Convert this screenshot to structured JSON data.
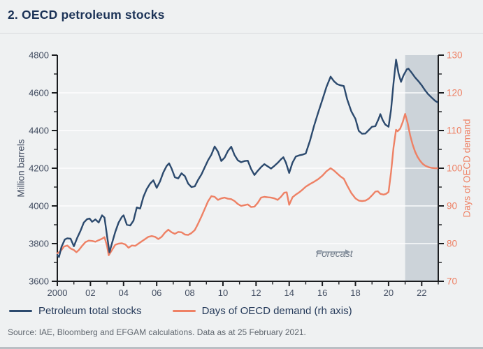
{
  "page": {
    "title": "2. OECD petroleum stocks"
  },
  "annotation": {
    "forecast_label": "Forecast"
  },
  "legend": {
    "items": [
      {
        "label": "Petroleum total stocks",
        "color": "#2c4a6e"
      },
      {
        "label": "Days of OECD demand (rh axis)",
        "color": "#ee8165"
      }
    ]
  },
  "source": {
    "text": "Source: IAE, Bloomberg and EFGAM calculations. Data as at 25 February 2021."
  },
  "chart_data": {
    "type": "line",
    "title": "2. OECD petroleum stocks",
    "grid": "horizontal white gridlines at left-axis major ticks",
    "legend_position": "bottom",
    "x_axis": {
      "range": [
        2000,
        2023
      ],
      "major_ticks": [
        2000,
        2002,
        2004,
        2006,
        2008,
        2010,
        2012,
        2014,
        2016,
        2018,
        2020,
        2022
      ],
      "tick_labels": [
        "2000",
        "02",
        "04",
        "06",
        "08",
        "10",
        "12",
        "14",
        "16",
        "18",
        "20",
        "22"
      ],
      "minor_tick_years": [
        2001,
        2003,
        2005,
        2007,
        2009,
        2011,
        2013,
        2015,
        2017,
        2019,
        2021,
        2023
      ],
      "label_color": "#424d61"
    },
    "y_left": {
      "label": "Million barrels",
      "range": [
        3600,
        4800
      ],
      "ticks": [
        3600,
        3800,
        4000,
        4200,
        4400,
        4600,
        4800
      ],
      "minor_step": 100,
      "label_color": "#424d61"
    },
    "y_right": {
      "label": "Days of OECD demand",
      "range": [
        70,
        130
      ],
      "ticks": [
        70,
        80,
        90,
        100,
        110,
        120,
        130
      ],
      "minor_step": 5,
      "label_color": "#ee8165"
    },
    "forecast_band": {
      "start": 2021,
      "end": 2023,
      "color": "#ccd3d9",
      "label": "Forecast"
    },
    "series": [
      {
        "name": "Petroleum total stocks",
        "axis": "left",
        "color": "#2c4a6e",
        "points": [
          [
            2000.0,
            3740
          ],
          [
            2000.1,
            3729
          ],
          [
            2000.25,
            3782
          ],
          [
            2000.45,
            3822
          ],
          [
            2000.6,
            3828
          ],
          [
            2000.8,
            3826
          ],
          [
            2001.0,
            3786
          ],
          [
            2001.2,
            3830
          ],
          [
            2001.4,
            3868
          ],
          [
            2001.6,
            3912
          ],
          [
            2001.8,
            3930
          ],
          [
            2001.95,
            3933
          ],
          [
            2002.1,
            3916
          ],
          [
            2002.3,
            3928
          ],
          [
            2002.5,
            3912
          ],
          [
            2002.7,
            3950
          ],
          [
            2002.85,
            3938
          ],
          [
            2003.0,
            3842
          ],
          [
            2003.15,
            3754
          ],
          [
            2003.3,
            3802
          ],
          [
            2003.5,
            3862
          ],
          [
            2003.7,
            3912
          ],
          [
            2003.9,
            3942
          ],
          [
            2004.0,
            3950
          ],
          [
            2004.2,
            3900
          ],
          [
            2004.4,
            3896
          ],
          [
            2004.6,
            3922
          ],
          [
            2004.8,
            3992
          ],
          [
            2005.0,
            3986
          ],
          [
            2005.2,
            4048
          ],
          [
            2005.4,
            4090
          ],
          [
            2005.6,
            4118
          ],
          [
            2005.8,
            4136
          ],
          [
            2006.0,
            4096
          ],
          [
            2006.2,
            4130
          ],
          [
            2006.4,
            4178
          ],
          [
            2006.6,
            4212
          ],
          [
            2006.75,
            4226
          ],
          [
            2006.9,
            4198
          ],
          [
            2007.1,
            4152
          ],
          [
            2007.3,
            4146
          ],
          [
            2007.5,
            4173
          ],
          [
            2007.7,
            4158
          ],
          [
            2007.9,
            4118
          ],
          [
            2008.1,
            4100
          ],
          [
            2008.3,
            4104
          ],
          [
            2008.5,
            4138
          ],
          [
            2008.7,
            4167
          ],
          [
            2008.9,
            4205
          ],
          [
            2009.1,
            4242
          ],
          [
            2009.3,
            4272
          ],
          [
            2009.5,
            4315
          ],
          [
            2009.7,
            4288
          ],
          [
            2009.9,
            4238
          ],
          [
            2010.1,
            4256
          ],
          [
            2010.3,
            4292
          ],
          [
            2010.5,
            4314
          ],
          [
            2010.7,
            4270
          ],
          [
            2010.9,
            4242
          ],
          [
            2011.1,
            4232
          ],
          [
            2011.3,
            4238
          ],
          [
            2011.5,
            4240
          ],
          [
            2011.7,
            4196
          ],
          [
            2011.9,
            4164
          ],
          [
            2012.1,
            4186
          ],
          [
            2012.3,
            4206
          ],
          [
            2012.5,
            4222
          ],
          [
            2012.7,
            4210
          ],
          [
            2012.9,
            4198
          ],
          [
            2013.1,
            4212
          ],
          [
            2013.3,
            4228
          ],
          [
            2013.5,
            4247
          ],
          [
            2013.65,
            4258
          ],
          [
            2013.8,
            4230
          ],
          [
            2014.0,
            4175
          ],
          [
            2014.2,
            4230
          ],
          [
            2014.4,
            4262
          ],
          [
            2014.6,
            4268
          ],
          [
            2014.8,
            4272
          ],
          [
            2015.0,
            4278
          ],
          [
            2015.25,
            4345
          ],
          [
            2015.5,
            4425
          ],
          [
            2015.75,
            4495
          ],
          [
            2016.0,
            4562
          ],
          [
            2016.25,
            4632
          ],
          [
            2016.5,
            4686
          ],
          [
            2016.7,
            4662
          ],
          [
            2016.9,
            4646
          ],
          [
            2017.1,
            4640
          ],
          [
            2017.3,
            4636
          ],
          [
            2017.5,
            4565
          ],
          [
            2017.75,
            4502
          ],
          [
            2018.0,
            4462
          ],
          [
            2018.2,
            4398
          ],
          [
            2018.4,
            4383
          ],
          [
            2018.6,
            4384
          ],
          [
            2018.8,
            4402
          ],
          [
            2019.0,
            4420
          ],
          [
            2019.2,
            4423
          ],
          [
            2019.4,
            4462
          ],
          [
            2019.5,
            4487
          ],
          [
            2019.65,
            4455
          ],
          [
            2019.8,
            4432
          ],
          [
            2020.0,
            4420
          ],
          [
            2020.15,
            4512
          ],
          [
            2020.3,
            4652
          ],
          [
            2020.45,
            4776
          ],
          [
            2020.6,
            4704
          ],
          [
            2020.75,
            4658
          ],
          [
            2020.9,
            4692
          ],
          [
            2021.1,
            4725
          ],
          [
            2021.2,
            4728
          ],
          [
            2021.4,
            4706
          ],
          [
            2021.6,
            4682
          ],
          [
            2021.8,
            4662
          ],
          [
            2022.0,
            4640
          ],
          [
            2022.2,
            4614
          ],
          [
            2022.4,
            4592
          ],
          [
            2022.6,
            4575
          ],
          [
            2022.8,
            4558
          ],
          [
            2022.95,
            4550
          ]
        ]
      },
      {
        "name": "Days of OECD demand (rh axis)",
        "axis": "right",
        "color": "#ee8165",
        "points": [
          [
            2000.0,
            77.4
          ],
          [
            2000.2,
            78.0
          ],
          [
            2000.4,
            79.2
          ],
          [
            2000.6,
            79.5
          ],
          [
            2000.8,
            78.7
          ],
          [
            2001.0,
            78.3
          ],
          [
            2001.15,
            77.7
          ],
          [
            2001.3,
            78.3
          ],
          [
            2001.5,
            79.4
          ],
          [
            2001.7,
            80.4
          ],
          [
            2001.9,
            80.8
          ],
          [
            2002.1,
            80.7
          ],
          [
            2002.3,
            80.5
          ],
          [
            2002.5,
            80.9
          ],
          [
            2002.7,
            81.3
          ],
          [
            2002.85,
            81.7
          ],
          [
            2003.0,
            79.4
          ],
          [
            2003.1,
            76.9
          ],
          [
            2003.3,
            78.3
          ],
          [
            2003.5,
            79.7
          ],
          [
            2003.7,
            80.0
          ],
          [
            2003.9,
            80.1
          ],
          [
            2004.1,
            79.8
          ],
          [
            2004.3,
            78.9
          ],
          [
            2004.5,
            79.5
          ],
          [
            2004.7,
            79.4
          ],
          [
            2004.9,
            80.0
          ],
          [
            2005.1,
            80.6
          ],
          [
            2005.3,
            81.2
          ],
          [
            2005.5,
            81.8
          ],
          [
            2005.7,
            82.0
          ],
          [
            2005.9,
            81.8
          ],
          [
            2006.1,
            81.2
          ],
          [
            2006.3,
            81.8
          ],
          [
            2006.5,
            82.9
          ],
          [
            2006.7,
            83.7
          ],
          [
            2006.9,
            83.0
          ],
          [
            2007.1,
            82.6
          ],
          [
            2007.3,
            83.1
          ],
          [
            2007.5,
            83.0
          ],
          [
            2007.7,
            82.4
          ],
          [
            2007.9,
            82.3
          ],
          [
            2008.1,
            82.8
          ],
          [
            2008.3,
            83.6
          ],
          [
            2008.5,
            85.3
          ],
          [
            2008.7,
            87.2
          ],
          [
            2008.9,
            89.2
          ],
          [
            2009.1,
            91.2
          ],
          [
            2009.3,
            92.6
          ],
          [
            2009.5,
            92.4
          ],
          [
            2009.7,
            91.6
          ],
          [
            2009.9,
            92.0
          ],
          [
            2010.1,
            92.2
          ],
          [
            2010.3,
            91.9
          ],
          [
            2010.5,
            91.8
          ],
          [
            2010.7,
            91.3
          ],
          [
            2010.9,
            90.5
          ],
          [
            2011.1,
            90.0
          ],
          [
            2011.3,
            90.2
          ],
          [
            2011.5,
            90.4
          ],
          [
            2011.7,
            89.7
          ],
          [
            2011.9,
            89.8
          ],
          [
            2012.1,
            90.8
          ],
          [
            2012.3,
            92.2
          ],
          [
            2012.5,
            92.4
          ],
          [
            2012.7,
            92.3
          ],
          [
            2012.9,
            92.2
          ],
          [
            2013.1,
            92.0
          ],
          [
            2013.3,
            91.6
          ],
          [
            2013.5,
            92.4
          ],
          [
            2013.7,
            93.5
          ],
          [
            2013.85,
            93.6
          ],
          [
            2014.0,
            90.3
          ],
          [
            2014.2,
            92.3
          ],
          [
            2014.4,
            93.0
          ],
          [
            2014.6,
            93.6
          ],
          [
            2014.8,
            94.3
          ],
          [
            2015.0,
            95.1
          ],
          [
            2015.25,
            95.8
          ],
          [
            2015.5,
            96.4
          ],
          [
            2015.75,
            97.1
          ],
          [
            2016.0,
            98.0
          ],
          [
            2016.25,
            99.2
          ],
          [
            2016.5,
            100.0
          ],
          [
            2016.7,
            99.4
          ],
          [
            2016.9,
            98.6
          ],
          [
            2017.1,
            97.8
          ],
          [
            2017.3,
            97.2
          ],
          [
            2017.5,
            95.4
          ],
          [
            2017.75,
            93.4
          ],
          [
            2018.0,
            92.0
          ],
          [
            2018.2,
            91.4
          ],
          [
            2018.4,
            91.3
          ],
          [
            2018.6,
            91.4
          ],
          [
            2018.8,
            91.9
          ],
          [
            2019.0,
            92.8
          ],
          [
            2019.2,
            93.8
          ],
          [
            2019.35,
            93.9
          ],
          [
            2019.5,
            93.2
          ],
          [
            2019.7,
            93.0
          ],
          [
            2019.85,
            93.2
          ],
          [
            2020.0,
            93.7
          ],
          [
            2020.15,
            99.0
          ],
          [
            2020.3,
            105.5
          ],
          [
            2020.45,
            110.2
          ],
          [
            2020.55,
            109.8
          ],
          [
            2020.7,
            110.5
          ],
          [
            2020.85,
            112.2
          ],
          [
            2021.0,
            114.4
          ],
          [
            2021.15,
            112.0
          ],
          [
            2021.3,
            108.8
          ],
          [
            2021.45,
            106.3
          ],
          [
            2021.6,
            104.4
          ],
          [
            2021.75,
            103.0
          ],
          [
            2021.9,
            102.0
          ],
          [
            2022.05,
            101.2
          ],
          [
            2022.2,
            100.7
          ],
          [
            2022.4,
            100.3
          ],
          [
            2022.6,
            100.1
          ],
          [
            2022.8,
            100.0
          ],
          [
            2022.95,
            100.0
          ]
        ]
      }
    ]
  }
}
